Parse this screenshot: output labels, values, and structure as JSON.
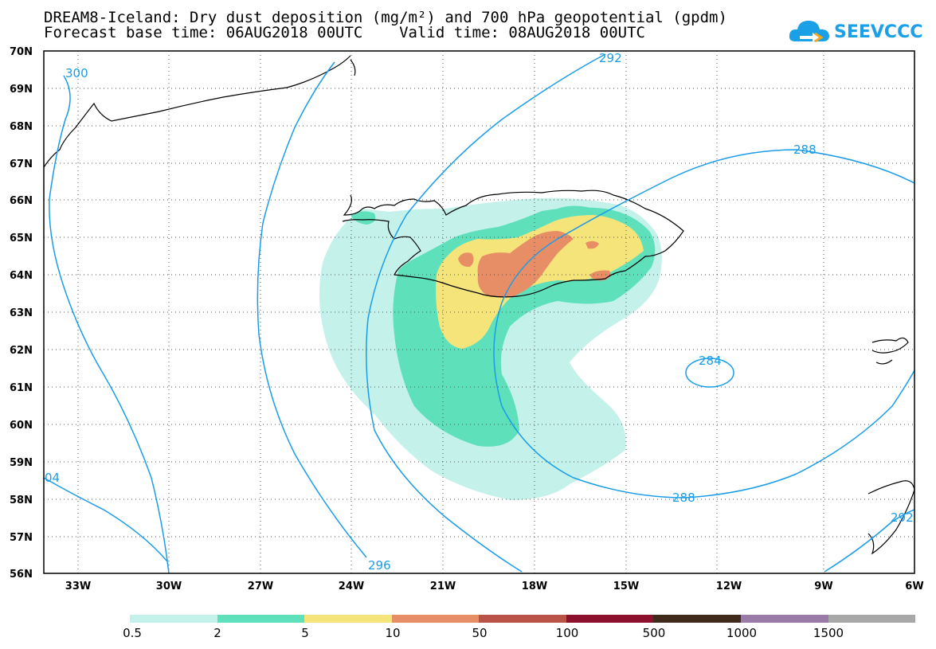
{
  "header": {
    "title_line1": "DREAM8-Iceland: Dry dust deposition (mg/m²) and 700 hPa geopotential (gpdm)",
    "title_line2": "Forecast base time: 06AUG2018 00UTC    Valid time: 08AUG2018 00UTC"
  },
  "logo": {
    "text": "SEEVCCC"
  },
  "axes": {
    "lat_labels": [
      "70N",
      "69N",
      "68N",
      "67N",
      "66N",
      "65N",
      "64N",
      "63N",
      "62N",
      "61N",
      "60N",
      "59N",
      "58N",
      "57N",
      "56N"
    ],
    "lon_labels": [
      "33W",
      "30W",
      "27W",
      "24W",
      "21W",
      "18W",
      "15W",
      "12W",
      "9W",
      "6W"
    ]
  },
  "contour_labels": [
    "300",
    "292",
    "288",
    "284",
    "288",
    "296",
    "04",
    "292"
  ],
  "legend": {
    "labels": [
      "0.5",
      "2",
      "5",
      "10",
      "50",
      "100",
      "500",
      "1000",
      "1500"
    ],
    "colors": [
      "#c4f2ea",
      "#5ee0bb",
      "#f5e47a",
      "#e88e66",
      "#b95347",
      "#8c0f2c",
      "#3f2a1c",
      "#9a7aa6",
      "#a8a8a8"
    ]
  },
  "colors": {
    "contour": "#1a9de8",
    "coast": "#000000"
  }
}
